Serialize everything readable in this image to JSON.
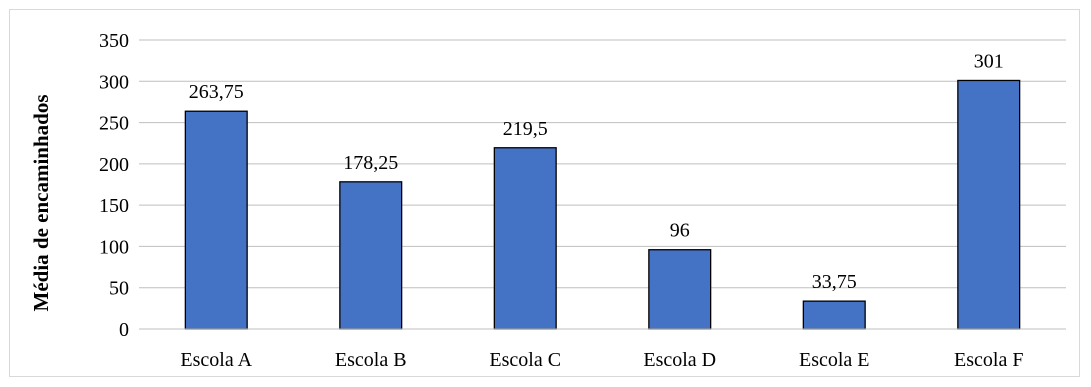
{
  "chart_data": {
    "type": "bar",
    "categories": [
      "Escola A",
      "Escola B",
      "Escola C",
      "Escola D",
      "Escola E",
      "Escola F"
    ],
    "values": [
      263.75,
      178.25,
      219.5,
      96,
      33.75,
      301
    ],
    "data_labels": [
      "263,75",
      "178,25",
      "219,5",
      "96",
      "33,75",
      "301"
    ],
    "title": "",
    "xlabel": "",
    "ylabel": "Média de encaminhados",
    "ylim": [
      0,
      350
    ],
    "yticks": [
      0,
      50,
      100,
      150,
      200,
      250,
      300,
      350
    ],
    "ytick_labels": [
      "0",
      "50",
      "100",
      "150",
      "200",
      "250",
      "300",
      "350"
    ],
    "grid": true,
    "legend": "none",
    "colors": {
      "bar_fill": "#4472C4",
      "bar_stroke": "#000000",
      "grid": "#bfbfbf",
      "frame": "#d9d9d9"
    }
  }
}
